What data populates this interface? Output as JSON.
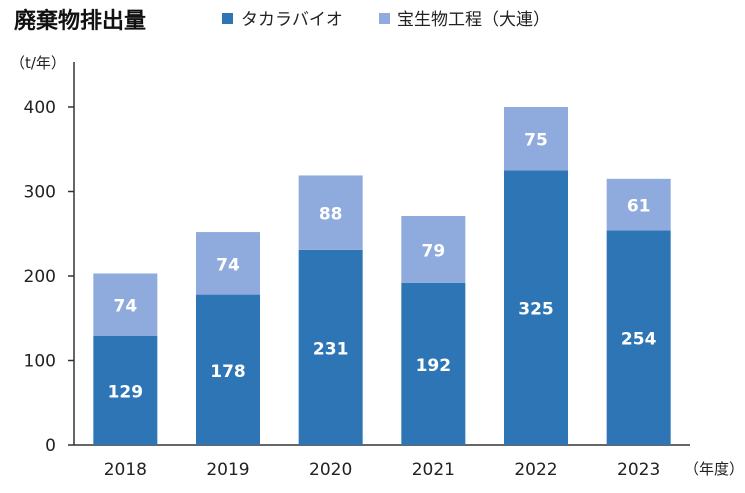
{
  "chart_data": {
    "type": "bar",
    "stacked": true,
    "title": "廃棄物排出量",
    "ylabel": "（t/年）",
    "xlabel": "（年度）",
    "categories": [
      "2018",
      "2019",
      "2020",
      "2021",
      "2022",
      "2023"
    ],
    "series": [
      {
        "name": "タカラバイオ",
        "values": [
          129,
          178,
          231,
          192,
          325,
          254
        ],
        "color": "#2E75B6"
      },
      {
        "name": "宝生物工程（大連）",
        "values": [
          74,
          74,
          88,
          79,
          75,
          61
        ],
        "color": "#8FAADC"
      }
    ],
    "ylim": [
      0,
      400
    ],
    "yticks": [
      0,
      100,
      200,
      300,
      400
    ],
    "grid": false,
    "legend_position": "top"
  }
}
